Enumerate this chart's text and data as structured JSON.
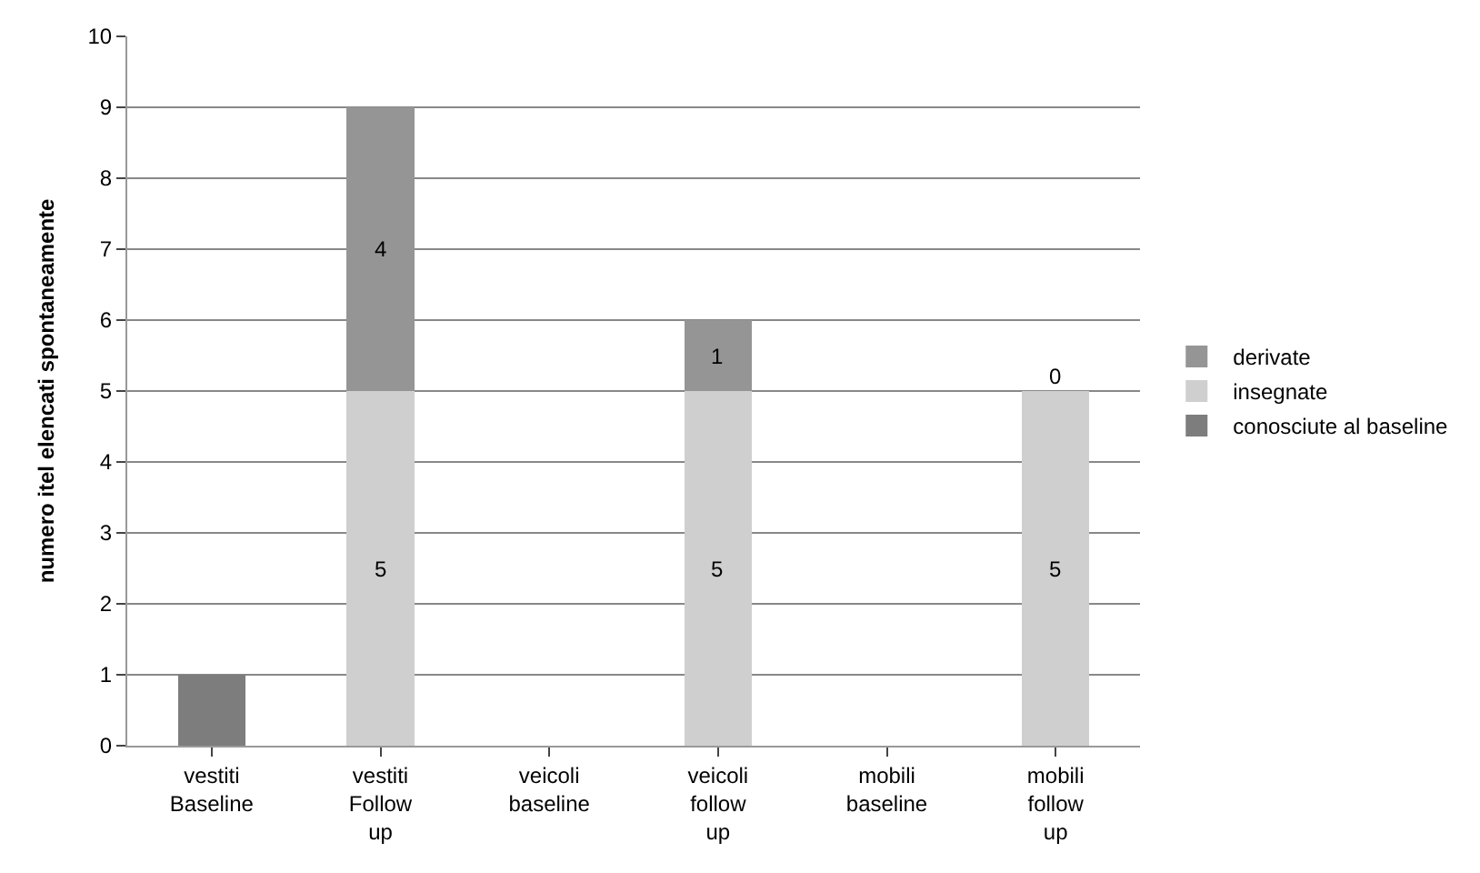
{
  "chart_data": {
    "type": "bar",
    "stacked": true,
    "ylabel": "numero itel elencati spontaneamente",
    "categories": [
      "vestiti Baseline",
      "vestiti Follow up",
      "veicoli baseline",
      "veicoli follow up",
      "mobili baseline",
      "mobili follow up"
    ],
    "series": [
      {
        "name": "conosciute al baseline",
        "color": "#7d7d7d",
        "values": [
          1,
          0,
          0,
          0,
          0,
          0
        ]
      },
      {
        "name": "insegnate",
        "color": "#cfcfcf",
        "values": [
          0,
          5,
          0,
          5,
          0,
          5
        ],
        "value_labels": [
          null,
          "5",
          null,
          "5",
          null,
          "5"
        ]
      },
      {
        "name": "derivate",
        "color": "#959595",
        "values": [
          0,
          4,
          0,
          1,
          0,
          0
        ],
        "value_labels": [
          null,
          "4",
          null,
          "1",
          null,
          "0"
        ]
      }
    ],
    "ylim": [
      0,
      10
    ],
    "yticks": [
      0,
      1,
      2,
      3,
      4,
      5,
      6,
      7,
      8,
      9,
      10
    ],
    "grid": "y",
    "legend": "right"
  }
}
